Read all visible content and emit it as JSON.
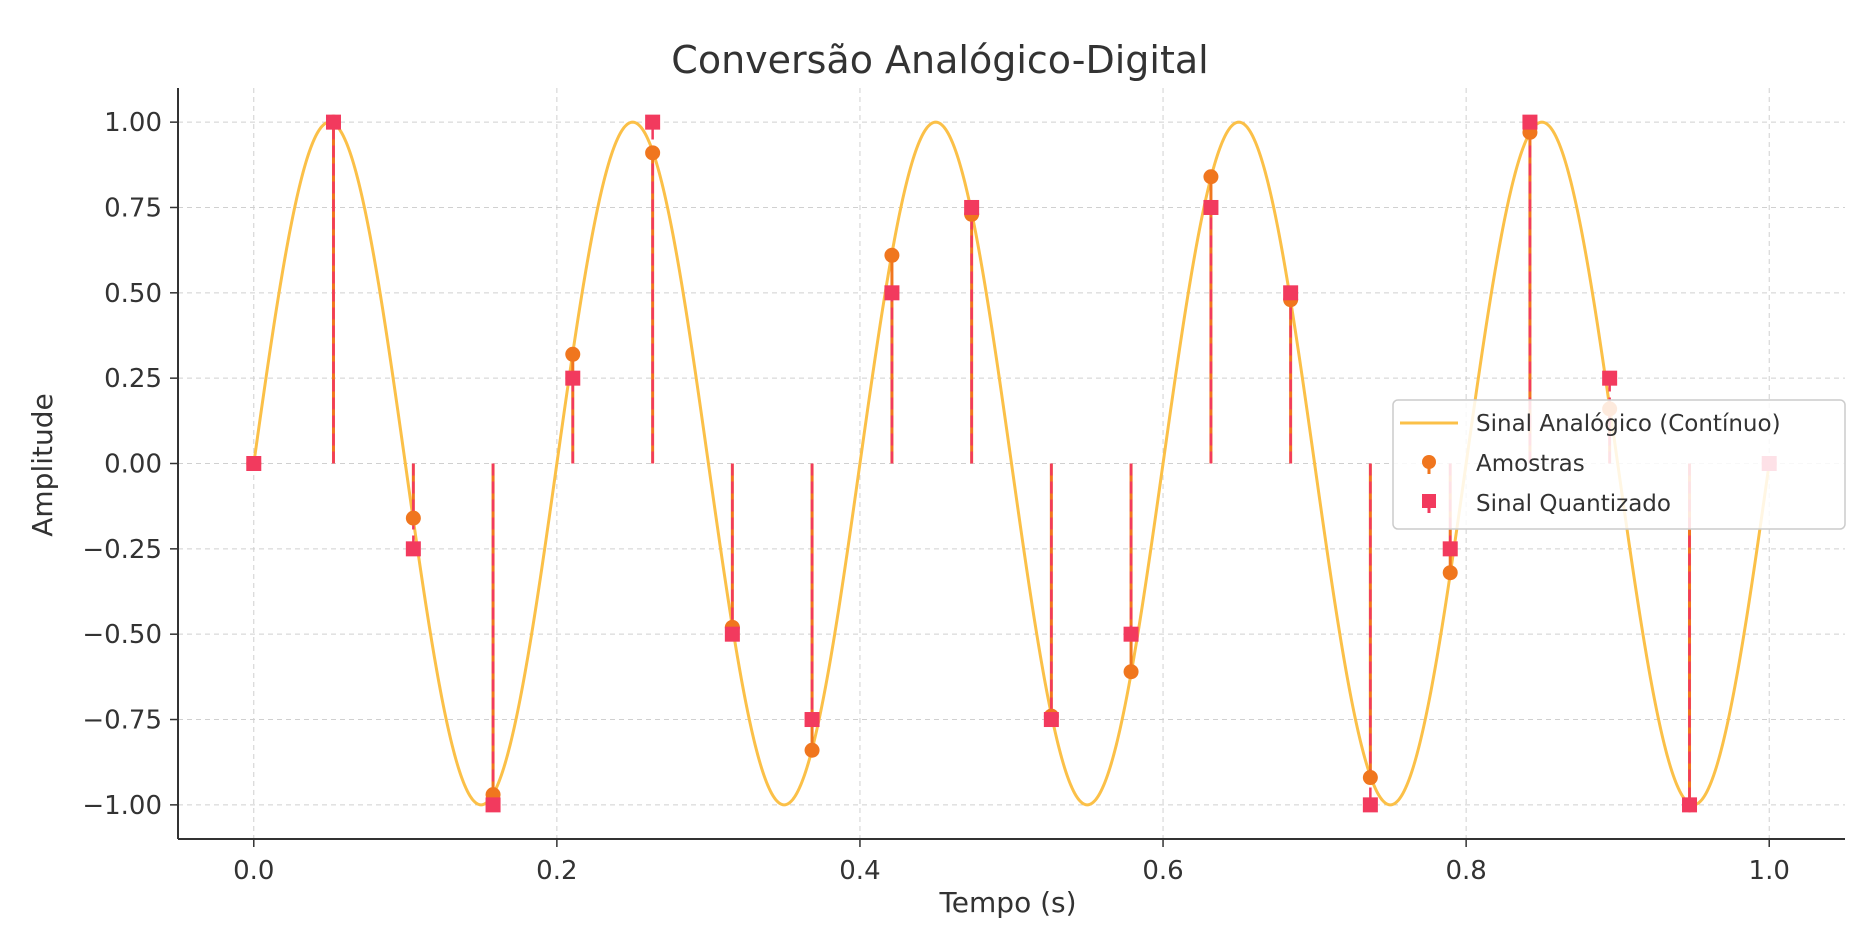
{
  "chart_data": {
    "type": "line",
    "title": "Conversão Analógico-Digital",
    "xlabel": "Tempo (s)",
    "ylabel": "Amplitude",
    "xlim": [
      -0.05,
      1.05
    ],
    "ylim": [
      -1.1,
      1.1
    ],
    "grid": true,
    "legend_position": "center-right",
    "xticks": [
      0.0,
      0.2,
      0.4,
      0.6,
      0.8,
      1.0
    ],
    "xtick_labels": [
      "0.0",
      "0.2",
      "0.4",
      "0.6",
      "0.8",
      "1.0"
    ],
    "yticks": [
      1.0,
      0.75,
      0.5,
      0.25,
      0.0,
      -0.25,
      -0.5,
      -0.75,
      -1.0
    ],
    "ytick_labels": [
      "1.00",
      "0.75",
      "0.50",
      "0.25",
      "0.00",
      "−0.25",
      "−0.50",
      "−0.75",
      "−1.00"
    ],
    "analog_signal": {
      "name": "Sinal Analógico (Contínuo)",
      "function": "sin(2*pi*5*t)",
      "frequency_hz": 5,
      "t_range": [
        0,
        1
      ],
      "color": "#fbc048"
    },
    "series": [
      {
        "name": "Amostras",
        "color": "#f0761e",
        "marker": "circle",
        "x": [
          0.0,
          0.0526,
          0.1053,
          0.1579,
          0.2105,
          0.2632,
          0.3158,
          0.3684,
          0.4211,
          0.4737,
          0.5263,
          0.5789,
          0.6316,
          0.6842,
          0.7368,
          0.7895,
          0.8421,
          0.8947,
          0.9474,
          1.0
        ],
        "values": [
          0.0,
          1.0,
          -0.16,
          -0.97,
          0.32,
          0.91,
          -0.48,
          -0.84,
          0.61,
          0.73,
          -0.74,
          -0.61,
          0.84,
          0.48,
          -0.92,
          -0.32,
          0.97,
          0.16,
          -1.0,
          0.0
        ]
      },
      {
        "name": "Sinal Quantizado",
        "color": "#f23a5e",
        "marker": "square",
        "x": [
          0.0,
          0.0526,
          0.1053,
          0.1579,
          0.2105,
          0.2632,
          0.3158,
          0.3684,
          0.4211,
          0.4737,
          0.5263,
          0.5789,
          0.6316,
          0.6842,
          0.7368,
          0.7895,
          0.8421,
          0.8947,
          0.9474,
          1.0
        ],
        "values": [
          0.0,
          1.0,
          -0.25,
          -1.0,
          0.25,
          1.0,
          -0.5,
          -0.75,
          0.5,
          0.75,
          -0.75,
          -0.5,
          0.75,
          0.5,
          -1.0,
          -0.25,
          1.0,
          0.25,
          -1.0,
          0.0
        ]
      }
    ]
  }
}
